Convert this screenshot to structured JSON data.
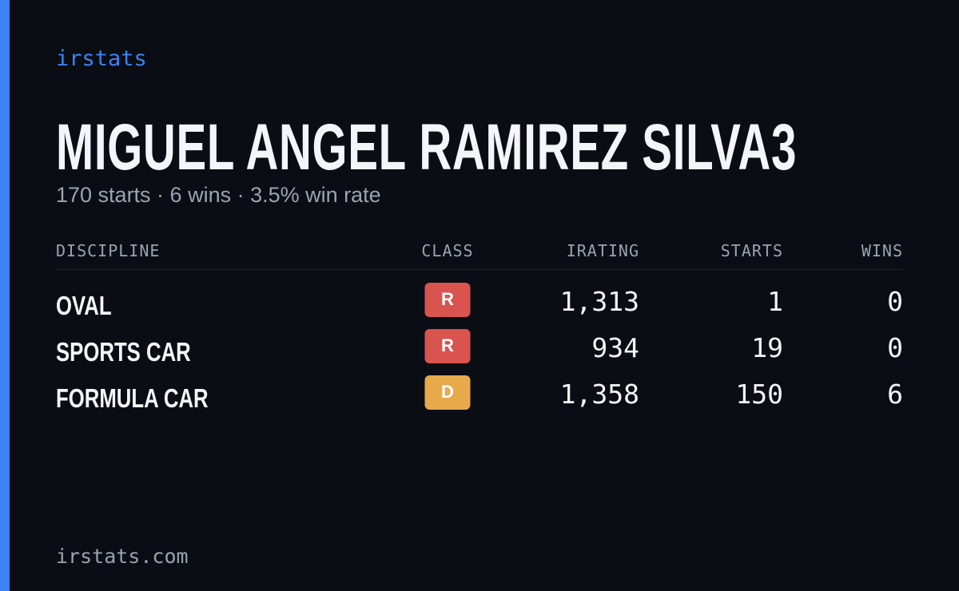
{
  "brand": "irstats",
  "name": "MIGUEL ANGEL RAMIREZ SILVA3",
  "summary": "170 starts · 6 wins · 3.5% win rate",
  "table": {
    "columns": [
      "DISCIPLINE",
      "CLASS",
      "IRATING",
      "STARTS",
      "WINS"
    ],
    "rows": [
      {
        "discipline": "OVAL",
        "class": "R",
        "class_color": "#d9534f",
        "irating": "1,313",
        "starts": "1",
        "wins": "0"
      },
      {
        "discipline": "SPORTS CAR",
        "class": "R",
        "class_color": "#d9534f",
        "irating": "934",
        "starts": "19",
        "wins": "0"
      },
      {
        "discipline": "FORMULA CAR",
        "class": "D",
        "class_color": "#e8a94a",
        "irating": "1,358",
        "starts": "150",
        "wins": "6"
      }
    ]
  },
  "footer": "irstats.com"
}
